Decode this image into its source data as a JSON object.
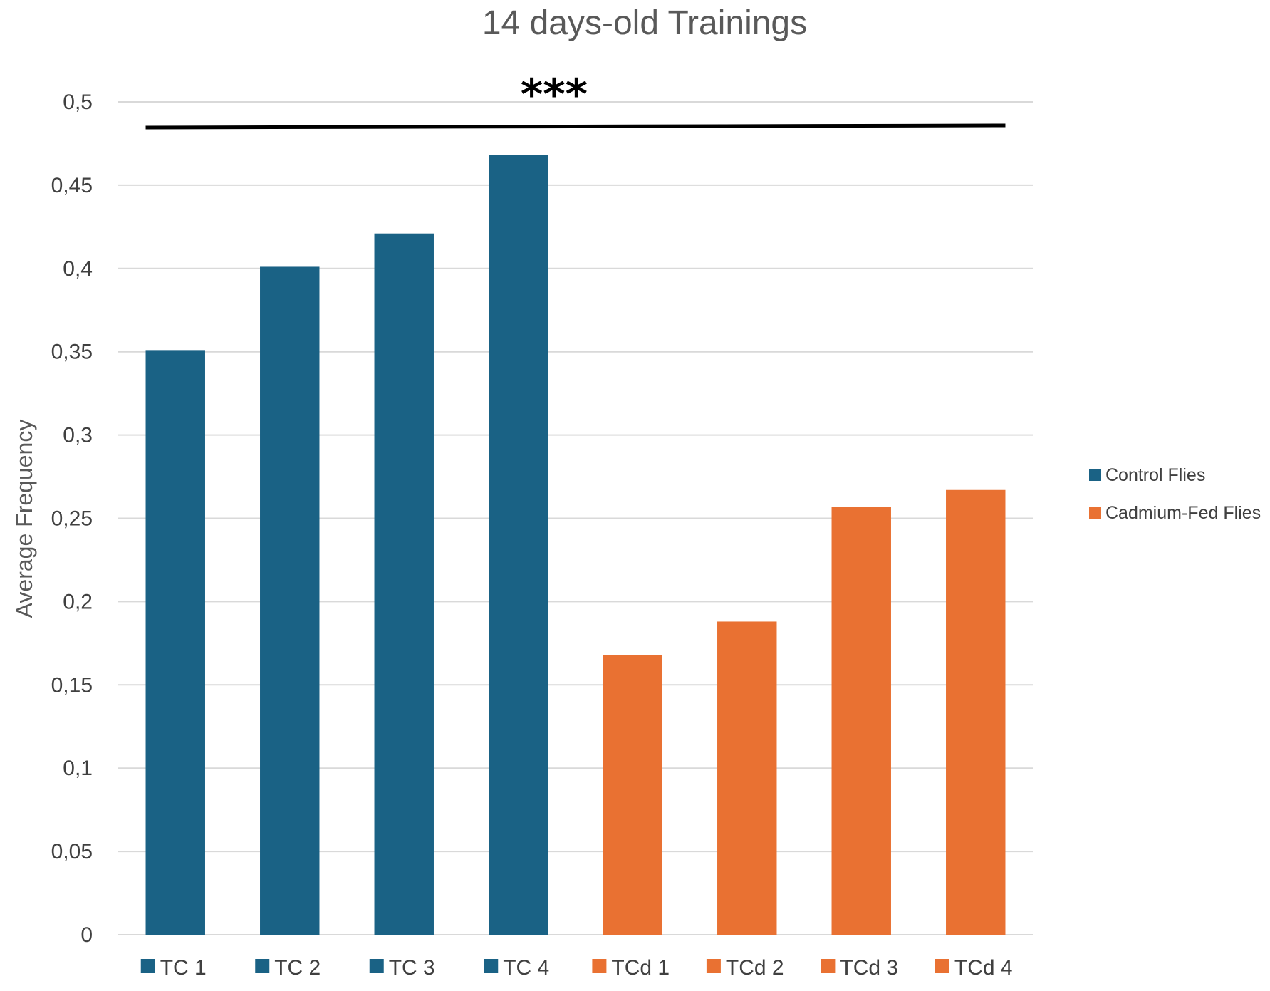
{
  "chart_data": {
    "type": "bar",
    "title": "14 days-old Trainings",
    "xlabel": "",
    "ylabel": "Average Frequency",
    "ylim": [
      0,
      0.5
    ],
    "yticks": [
      "0",
      "0,05",
      "0,1",
      "0,15",
      "0,2",
      "0,25",
      "0,3",
      "0,35",
      "0,4",
      "0,45",
      "0,5"
    ],
    "categories": [
      "TC 1",
      "TC 2",
      "TC 3",
      "TC 4",
      "TCd 1",
      "TCd 2",
      "TCd 3",
      "TCd 4"
    ],
    "values": [
      0.351,
      0.401,
      0.421,
      0.468,
      0.168,
      0.188,
      0.257,
      0.267
    ],
    "category_groups": [
      0,
      0,
      0,
      0,
      1,
      1,
      1,
      1
    ],
    "series": [
      {
        "name": "Control Flies",
        "color": "#1a6285"
      },
      {
        "name": "Cadmium-Fed Flies",
        "color": "#e97132"
      }
    ],
    "legend_position": "right",
    "grid": true,
    "significance": {
      "label": "***",
      "span": [
        "TC 1",
        "TCd 4"
      ]
    }
  }
}
